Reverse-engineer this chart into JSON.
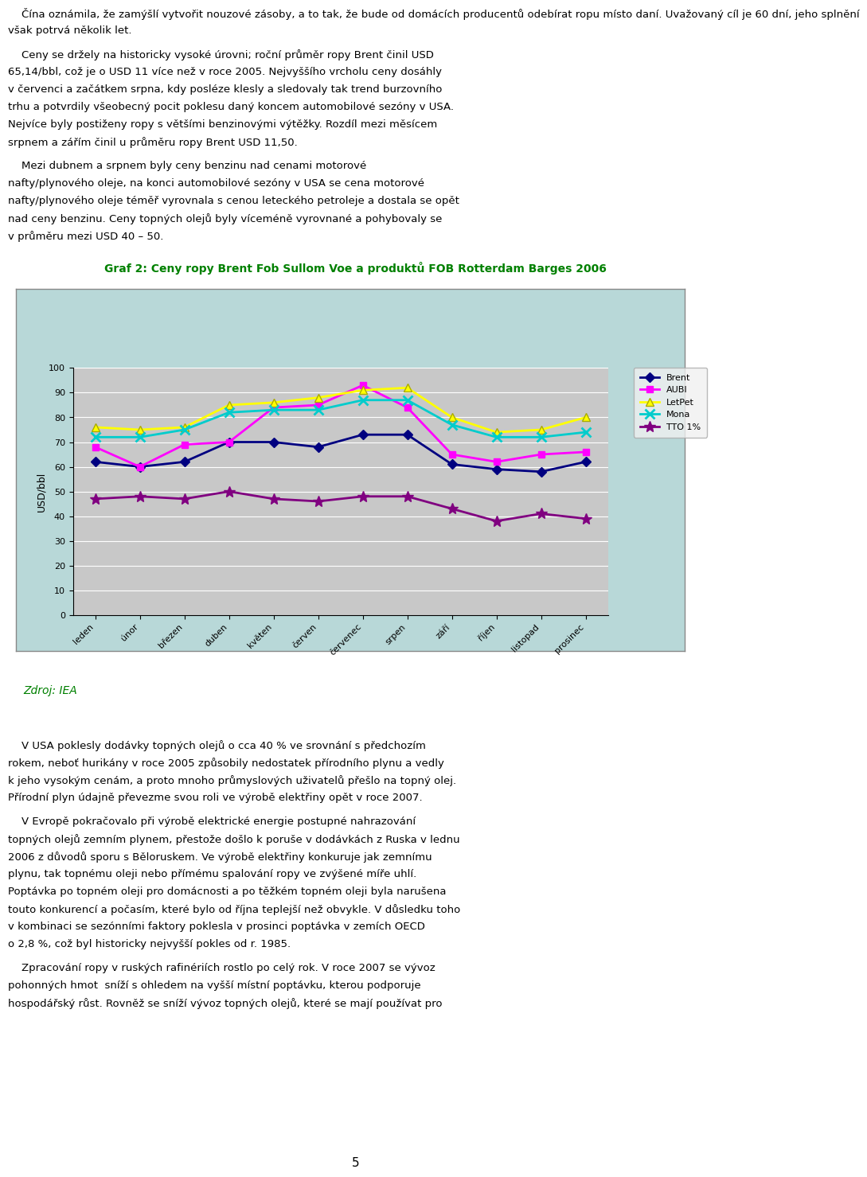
{
  "title": "Graf 2: Ceny ropy Brent Fob Sullom Voe a produktů FOB Rotterdam Barges 2006",
  "title_color": "#008000",
  "ylabel": "USD/bbl",
  "months": [
    "leden",
    "únor",
    "březen",
    "duben",
    "květen",
    "červen",
    "červenec",
    "srpen",
    "září",
    "říjen",
    "listopad",
    "prosinec"
  ],
  "series_order": [
    "Brent",
    "AUBI",
    "LetPet",
    "Mona",
    "TTO 1%"
  ],
  "series": {
    "Brent": {
      "values": [
        62,
        60,
        62,
        70,
        70,
        68,
        73,
        73,
        61,
        59,
        58,
        62
      ],
      "color": "#000080",
      "marker": "D",
      "linewidth": 2,
      "markersize": 6
    },
    "AUBI": {
      "values": [
        68,
        60,
        69,
        70,
        84,
        85,
        93,
        84,
        65,
        62,
        65,
        66
      ],
      "color": "#FF00FF",
      "marker": "s",
      "linewidth": 2,
      "markersize": 6
    },
    "LetPet": {
      "values": [
        76,
        75,
        76,
        85,
        86,
        88,
        91,
        92,
        80,
        74,
        75,
        80
      ],
      "color": "#FFFF00",
      "marker": "^",
      "linewidth": 2,
      "markersize": 7
    },
    "Mona": {
      "values": [
        72,
        72,
        75,
        82,
        83,
        83,
        87,
        87,
        77,
        72,
        72,
        74
      ],
      "color": "#00CCCC",
      "marker": "x",
      "linewidth": 2,
      "markersize": 8,
      "markeredgewidth": 2
    },
    "TTO 1%": {
      "values": [
        47,
        48,
        47,
        50,
        47,
        46,
        48,
        48,
        43,
        38,
        41,
        39
      ],
      "color": "#800080",
      "marker": "*",
      "linewidth": 2,
      "markersize": 10
    }
  },
  "ylim": [
    0,
    100
  ],
  "yticks": [
    0,
    10,
    20,
    30,
    40,
    50,
    60,
    70,
    80,
    90,
    100
  ],
  "chart_bg": "#C8C8C8",
  "outer_bg": "#B8D8D8",
  "outer_border": "#888888",
  "fig_bg": "#FFFFFF",
  "grid_color": "#FFFFFF",
  "legend_bg": "#F0F0F0",
  "legend_border": "#AAAAAA",
  "zdroj_color": "#008000",
  "text_above": [
    "\tČína oznámila, že zamýšlí vytvořit nouzové zásoby, a to tak, že bude od domácích producentů odebírat ropu místo daní. Uvažovaný cíl je 60 dní, jeho splnění však potrvá několik let.",
    "\tCeny se držely na historicky vysoké úrovni; roční průměr ropy Brent činil USD 65,14/bbl, což je o USD 11 více než v roce 2005. Nejvyššího vrcholu ceny dosáhly v červenci a začátkem srpna, kdy posléze klesly a sledovaly tak trend burzovního trhu a potvrdily všeobecný pocit poklesu daný koncem automobilové sezóny v USA. Nejvíce byly postiženy ropy s většími benzinovými výtěžky. Rozdíl mezi měsícem srpnem a zářím činil u průměru ropy Brent USD 11,50.",
    "\tMezi dubnem a srpnem byly ceny benzinu nad cenami motorové nafty/plynového oleje, na konci automobilové sezóny v USA se cena motorové nafty/plynového oleje téměř vyrovnala s cenou leteckého petroleje a dostala se opět nad ceny benzinu. Ceny topných olejů byly víceméně vyrovnané a pohybovaly se v průměru mezi USD 40 – 50."
  ],
  "text_below": [
    "\tV USA poklesly dodávky topných olejů o cca 40 % ve srovnání s předchozím rokem, neboť hurikány v roce 2005 způsobily nedostatek přírodního plynu a vedly k jeho vysokým cenám, a proto mnoho průmyslových uživatelů přešlo na topný olej. Přírodní plyn údajně převezme svou roli ve výrobě elektřiny opět v roce 2007.",
    "\tV Evropě pokračovalo při výrobě elektrické energie postupné nahrazování topných olejů zemním plynem, přestože došlo k poruše v dodávkách z Ruska v lednu 2006 z důvodů sporu s Běloruskem. Ve výrobě elektřiny konkuruje jak zemnímu plynu, tak topnému oleji nebo přímému spalování ropy ve zvýšené míře uhlí. Poptávka po topném oleji pro domácnosti a po těžkém topném oleji byla narušena touto konkurencí a počasím, které bylo od října teplejší než obvykle. V důsledku toho v kombinaci se sezónními faktory poklesla v prosinci poptávka v zemích OECD o 2,8 %, což byl historicky nejvyšší pokles od r. 1985.",
    "\tZpracování ropy v ruských rafinériích rostlo po celý rok. V roce 2007 se vývoz pohonných hmot  sníží s ohledem na vyšší místní poptávku, kterou podporuje hospodářský růst. Rovněž se sníží vývoz topných olejů, které se mají používat pro"
  ],
  "page_number": "5"
}
